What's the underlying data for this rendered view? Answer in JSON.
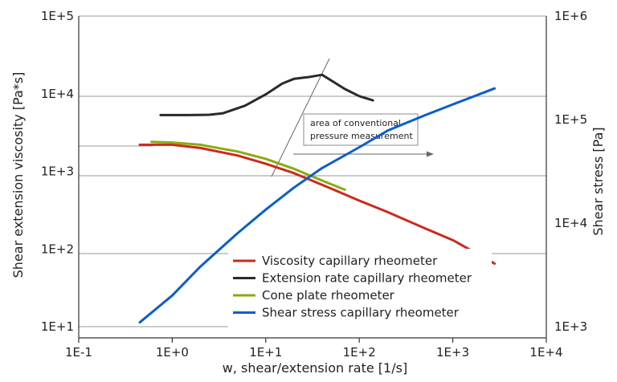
{
  "chart_data": {
    "type": "line",
    "xlabel": "w, shear/extension rate [1/s]",
    "ylabel_left": "Shear extension viscosity [Pa*s]",
    "ylabel_right": "Shear stress [Pa]",
    "x_scale": "log",
    "y_left_scale": "log",
    "y_right_scale": "log",
    "xlim": [
      0.1,
      10000
    ],
    "ylim_left": [
      10,
      100000
    ],
    "ylim_right": [
      1000,
      1000000
    ],
    "grid": "horizontal",
    "legend_position": "bottom-right",
    "x_ticks": [
      {
        "label": "1E-1",
        "value": 0.1
      },
      {
        "label": "1E+0",
        "value": 1
      },
      {
        "label": "1E+1",
        "value": 10
      },
      {
        "label": "1E+2",
        "value": 100
      },
      {
        "label": "1E+3",
        "value": 1000
      },
      {
        "label": "1E+4",
        "value": 10000
      }
    ],
    "y_left_ticks": [
      {
        "label": "1E+1",
        "value": 10
      },
      {
        "label": "1E+2",
        "value": 100
      },
      {
        "label": "1E+3",
        "value": 1000
      },
      {
        "label": "1E+4",
        "value": 10000
      },
      {
        "label": "1E+5",
        "value": 100000
      }
    ],
    "y_right_ticks": [
      {
        "label": "1E+3",
        "value": 1000
      },
      {
        "label": "1E+4",
        "value": 10000
      },
      {
        "label": "1E+5",
        "value": 100000
      },
      {
        "label": "1E+6",
        "value": 1000000
      }
    ],
    "series": [
      {
        "name": "Viscosity capillary rheometer",
        "color": "#cc2a1c",
        "axis": "left",
        "x": [
          0.45,
          1,
          2,
          5,
          10,
          20,
          50,
          100,
          200,
          500,
          1000,
          2800
        ],
        "y": [
          2200,
          2200,
          2000,
          1600,
          1250,
          950,
          600,
          420,
          300,
          185,
          130,
          65
        ]
      },
      {
        "name": "Extension rate capillary rheometer",
        "color": "#2a2a2a",
        "axis": "left",
        "x": [
          0.75,
          1.5,
          2.5,
          3.5,
          6,
          10,
          15,
          20,
          30,
          40,
          70,
          100,
          140
        ],
        "y": [
          5300,
          5300,
          5350,
          5600,
          7000,
          9800,
          13500,
          15500,
          16500,
          17500,
          11500,
          9300,
          8200
        ]
      },
      {
        "name": "Cone plate rheometer",
        "color": "#8aab10",
        "axis": "left",
        "x": [
          0.6,
          1,
          2,
          5,
          10,
          20,
          40,
          70
        ],
        "y": [
          2400,
          2350,
          2200,
          1800,
          1450,
          1080,
          760,
          580
        ]
      },
      {
        "name": "Shear stress capillary rheometer",
        "color": "#0b5fc6",
        "axis": "right",
        "x": [
          0.45,
          1,
          2,
          5,
          10,
          20,
          40,
          100,
          200,
          500,
          1000,
          2800
        ],
        "y": [
          1100,
          2000,
          3800,
          8000,
          13500,
          22000,
          34000,
          54000,
          78000,
          110000,
          140000,
          200000
        ]
      }
    ],
    "annotations": [
      {
        "text_lines": [
          "area of conventional",
          "pressure measurement"
        ]
      }
    ]
  }
}
